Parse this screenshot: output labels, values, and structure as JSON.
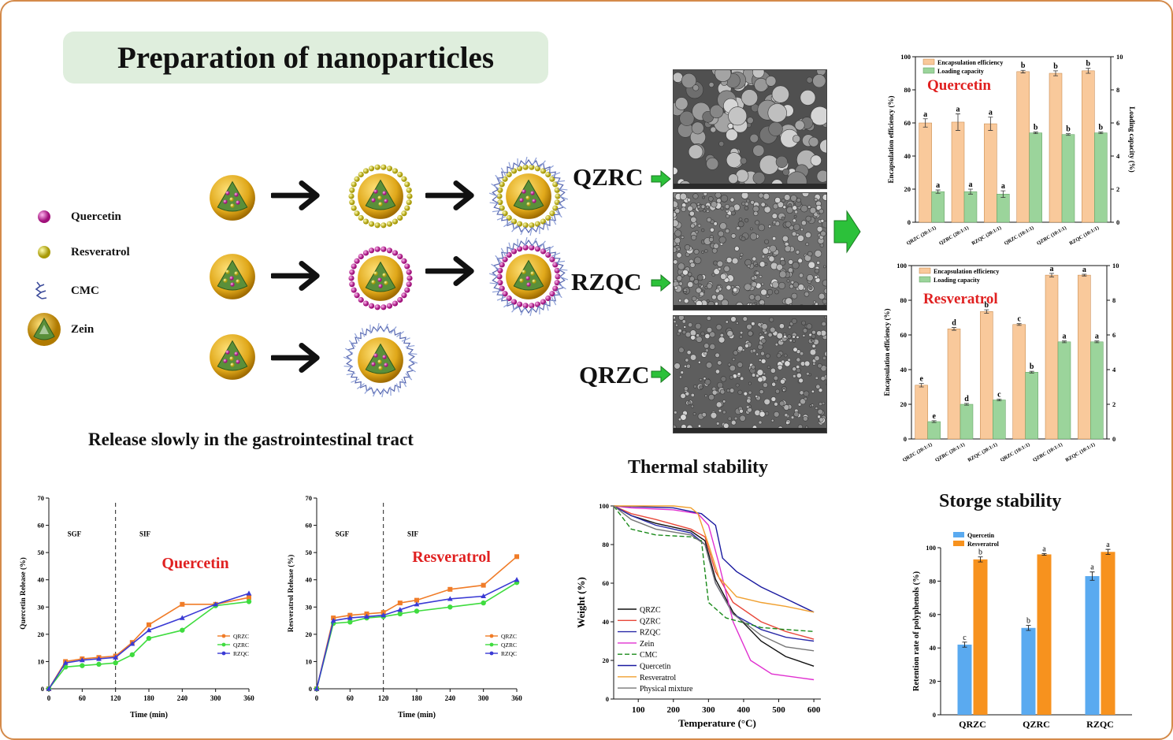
{
  "header": {
    "title": "Preparation of nanoparticles"
  },
  "legend": [
    {
      "label": "Quercetin",
      "icon": "quercetin-sphere-icon",
      "color": "#c81e9a"
    },
    {
      "label": "Resveratrol",
      "icon": "resveratrol-sphere-icon",
      "color": "#d9c81a"
    },
    {
      "label": "CMC",
      "icon": "cmc-chain-icon",
      "color": "#3c4b9a"
    },
    {
      "label": "Zein",
      "icon": "zein-particle-icon",
      "color": "#d4a21a"
    }
  ],
  "particle_labels": {
    "qzrc": "QZRC",
    "rzqc": "RZQC",
    "qrzc": "QRZC"
  },
  "sections": {
    "release": "Release slowly in the gastrointestinal tract",
    "thermal": "Thermal stability",
    "storage": "Storge stability"
  },
  "chart_data": [
    {
      "id": "ee-quercetin",
      "type": "bar",
      "title": "Quercetin",
      "ylabel": "Encapsulation efficiency (%)",
      "y2label": "Loading capacity (%)",
      "ylim": [
        0,
        100
      ],
      "y2lim": [
        0,
        10
      ],
      "yticks": [
        "0",
        "20",
        "40",
        "60",
        "80",
        "100"
      ],
      "y2ticks": [
        "0",
        "2",
        "4",
        "6",
        "8",
        "10"
      ],
      "categories": [
        "QRZC (20:1:1)",
        "QZRC (20:1:1)",
        "RZQC (20:1:1)",
        "QRZC (10:1:1)",
        "QZRC (10:1:1)",
        "RZQC (10:1:1)"
      ],
      "legend": "top-left",
      "series": [
        {
          "name": "Encapsulation efficiency",
          "axis": "left",
          "color": "#f9c99b",
          "values": [
            60,
            60.5,
            59.5,
            91,
            90,
            91.5
          ],
          "errors": [
            2.5,
            5,
            4,
            0.8,
            1.5,
            1.5
          ],
          "letters": [
            "a",
            "a",
            "a",
            "b",
            "b",
            "b"
          ]
        },
        {
          "name": "Loading capacity",
          "axis": "right",
          "color": "#9bd49b",
          "values": [
            1.85,
            1.85,
            1.7,
            5.4,
            5.3,
            5.4
          ],
          "errors": [
            0.1,
            0.15,
            0.2,
            0.05,
            0.05,
            0.05
          ],
          "letters": [
            "a",
            "a",
            "a",
            "b",
            "b",
            "b"
          ]
        }
      ]
    },
    {
      "id": "ee-resveratrol",
      "type": "bar",
      "title": "Resveratrol",
      "ylabel": "Encapsulation efficiency (%)",
      "ylim": [
        0,
        100
      ],
      "y2lim": [
        0,
        10
      ],
      "yticks": [
        "0",
        "20",
        "40",
        "60",
        "80",
        "100"
      ],
      "y2ticks": [
        "0",
        "2",
        "4",
        "6",
        "8",
        "10"
      ],
      "categories": [
        "QRZC (20:1:1)",
        "QZRC (20:1:1)",
        "RZQC (20:1:1)",
        "QRZC (10:1:1)",
        "QZRC (10:1:1)",
        "RZQC (10:1:1)"
      ],
      "legend": "top-left",
      "series": [
        {
          "name": "Encapsulation efficiency",
          "axis": "left",
          "color": "#f9c99b",
          "values": [
            31,
            63.5,
            73.5,
            66,
            94.5,
            94.5
          ],
          "errors": [
            1,
            0.8,
            1,
            0.5,
            1,
            0.5
          ],
          "letters": [
            "e",
            "d",
            "b",
            "c",
            "a",
            "a"
          ]
        },
        {
          "name": "Loading capacity",
          "axis": "right",
          "color": "#9bd49b",
          "values": [
            1.0,
            2.0,
            2.25,
            3.85,
            5.6,
            5.6
          ],
          "errors": [
            0.05,
            0.05,
            0.05,
            0.05,
            0.05,
            0.05
          ],
          "letters": [
            "e",
            "d",
            "c",
            "b",
            "a",
            "a"
          ]
        }
      ]
    },
    {
      "id": "release-quercetin",
      "type": "line",
      "title": "Quercetin",
      "xlabel": "Time (min)",
      "ylabel": "Quercetin Release (%)",
      "xlim": [
        0,
        360
      ],
      "ylim": [
        0,
        70
      ],
      "xticks": [
        "0",
        "60",
        "120",
        "180",
        "240",
        "300",
        "360"
      ],
      "yticks": [
        "0",
        "10",
        "20",
        "30",
        "40",
        "50",
        "60",
        "70"
      ],
      "annotations": [
        "SGF",
        "SIF"
      ],
      "divider_x": 120,
      "legend": "bottom-right",
      "x": [
        0,
        30,
        60,
        90,
        120,
        150,
        180,
        240,
        300,
        360
      ],
      "series": [
        {
          "name": "QRZC",
          "color": "#f07c28",
          "marker": "square",
          "values": [
            0,
            10,
            11,
            11.5,
            12,
            17,
            23.5,
            31,
            31,
            33.5
          ]
        },
        {
          "name": "QZRC",
          "color": "#3fdc3f",
          "marker": "circle",
          "values": [
            0,
            8,
            8.5,
            9,
            9.5,
            12.5,
            18.5,
            21.5,
            30.5,
            32
          ]
        },
        {
          "name": "RZQC",
          "color": "#3a3ad4",
          "marker": "triangle",
          "values": [
            0,
            9.5,
            10.5,
            11,
            11.5,
            16.5,
            21.5,
            26,
            31,
            35
          ]
        }
      ]
    },
    {
      "id": "release-resveratrol",
      "type": "line",
      "title": "Resveratrol",
      "xlabel": "Time (min)",
      "ylabel": "Resveratrol Release (%)",
      "xlim": [
        0,
        360
      ],
      "ylim": [
        0,
        70
      ],
      "xticks": [
        "0",
        "60",
        "120",
        "180",
        "240",
        "300",
        "360"
      ],
      "yticks": [
        "0",
        "10",
        "20",
        "30",
        "40",
        "50",
        "60",
        "70"
      ],
      "annotations": [
        "SGF",
        "SIF"
      ],
      "divider_x": 120,
      "legend": "bottom-right",
      "x": [
        0,
        30,
        60,
        90,
        120,
        150,
        180,
        240,
        300,
        360
      ],
      "series": [
        {
          "name": "QRZC",
          "color": "#f07c28",
          "marker": "square",
          "values": [
            0,
            26,
            27,
            27.5,
            28,
            31.5,
            32.5,
            36.5,
            38,
            48.5
          ]
        },
        {
          "name": "QZRC",
          "color": "#3fdc3f",
          "marker": "circle",
          "values": [
            0,
            24,
            24.5,
            26,
            26.5,
            27.5,
            28.5,
            30,
            31.5,
            39
          ]
        },
        {
          "name": "RZQC",
          "color": "#3a3ad4",
          "marker": "triangle",
          "values": [
            0,
            25,
            26,
            26.5,
            27,
            29,
            31,
            33,
            34,
            40
          ]
        }
      ]
    },
    {
      "id": "thermal",
      "type": "line",
      "xlabel": "Temperature (°C)",
      "ylabel": "Weight (%)",
      "xlim": [
        30,
        620
      ],
      "ylim": [
        0,
        100
      ],
      "xticks": [
        "100",
        "200",
        "300",
        "400",
        "500",
        "600"
      ],
      "yticks": [
        "0",
        "20",
        "40",
        "60",
        "80",
        "100"
      ],
      "legend": "bottom-left",
      "series": [
        {
          "name": "QRZC",
          "color": "#111111",
          "dash": "",
          "points": [
            [
              30,
              100
            ],
            [
              80,
              95
            ],
            [
              150,
              91
            ],
            [
              250,
              87
            ],
            [
              290,
              82
            ],
            [
              320,
              62
            ],
            [
              370,
              45
            ],
            [
              450,
              30
            ],
            [
              520,
              22
            ],
            [
              600,
              17
            ]
          ]
        },
        {
          "name": "QZRC",
          "color": "#e8483a",
          "dash": "",
          "points": [
            [
              30,
              100
            ],
            [
              80,
              96
            ],
            [
              150,
              93
            ],
            [
              250,
              88
            ],
            [
              290,
              84
            ],
            [
              320,
              66
            ],
            [
              370,
              50
            ],
            [
              450,
              40
            ],
            [
              520,
              35
            ],
            [
              600,
              31
            ]
          ]
        },
        {
          "name": "RZQC",
          "color": "#2a2aa8",
          "dash": "",
          "points": [
            [
              30,
              100
            ],
            [
              80,
              95
            ],
            [
              150,
              90
            ],
            [
              250,
              86
            ],
            [
              290,
              80
            ],
            [
              320,
              60
            ],
            [
              370,
              44
            ],
            [
              450,
              36
            ],
            [
              520,
              32
            ],
            [
              600,
              30
            ]
          ]
        },
        {
          "name": "Zein",
          "color": "#e030d0",
          "dash": "",
          "points": [
            [
              30,
              100
            ],
            [
              80,
              99
            ],
            [
              200,
              98
            ],
            [
              270,
              96
            ],
            [
              300,
              90
            ],
            [
              330,
              70
            ],
            [
              370,
              40
            ],
            [
              420,
              20
            ],
            [
              480,
              13
            ],
            [
              600,
              10
            ]
          ]
        },
        {
          "name": "CMC",
          "color": "#1a8a1a",
          "dash": "6 3",
          "points": [
            [
              30,
              100
            ],
            [
              80,
              88
            ],
            [
              150,
              85
            ],
            [
              250,
              84
            ],
            [
              280,
              82
            ],
            [
              300,
              50
            ],
            [
              350,
              42
            ],
            [
              450,
              37
            ],
            [
              520,
              36
            ],
            [
              600,
              35
            ]
          ]
        },
        {
          "name": "Quercetin",
          "color": "#1a1aa0",
          "dash": "",
          "points": [
            [
              30,
              100
            ],
            [
              200,
              99
            ],
            [
              280,
              96
            ],
            [
              320,
              90
            ],
            [
              340,
              73
            ],
            [
              380,
              66
            ],
            [
              450,
              58
            ],
            [
              520,
              52
            ],
            [
              600,
              45
            ]
          ]
        },
        {
          "name": "Resveratrol",
          "color": "#f0a030",
          "dash": "",
          "points": [
            [
              30,
              100
            ],
            [
              200,
              100
            ],
            [
              250,
              99
            ],
            [
              270,
              96
            ],
            [
              300,
              80
            ],
            [
              330,
              63
            ],
            [
              380,
              53
            ],
            [
              450,
              50
            ],
            [
              520,
              48
            ],
            [
              600,
              45
            ]
          ]
        },
        {
          "name": "Physical mixture",
          "color": "#777777",
          "dash": "",
          "points": [
            [
              30,
              100
            ],
            [
              80,
              93
            ],
            [
              150,
              88
            ],
            [
              250,
              85
            ],
            [
              290,
              80
            ],
            [
              320,
              60
            ],
            [
              370,
              44
            ],
            [
              450,
              33
            ],
            [
              520,
              27
            ],
            [
              600,
              25
            ]
          ]
        }
      ]
    },
    {
      "id": "storage",
      "type": "bar",
      "ylabel": "Retention rate of polyphenols (%)",
      "ylim": [
        0,
        100
      ],
      "yticks": [
        "0",
        "20",
        "40",
        "60",
        "80",
        "100"
      ],
      "categories": [
        "QRZC",
        "QZRC",
        "RZQC"
      ],
      "legend": "top-left",
      "series": [
        {
          "name": "Quercetin",
          "color": "#5aaaf0",
          "values": [
            42,
            52,
            83
          ],
          "errors": [
            1.5,
            1.5,
            2.5
          ],
          "letters": [
            "c",
            "b",
            "a"
          ]
        },
        {
          "name": "Resveratrol",
          "color": "#f7921e",
          "values": [
            93,
            96,
            97.5
          ],
          "errors": [
            1.5,
            0.5,
            1.5
          ],
          "letters": [
            "b",
            "a",
            "a"
          ]
        }
      ]
    }
  ]
}
